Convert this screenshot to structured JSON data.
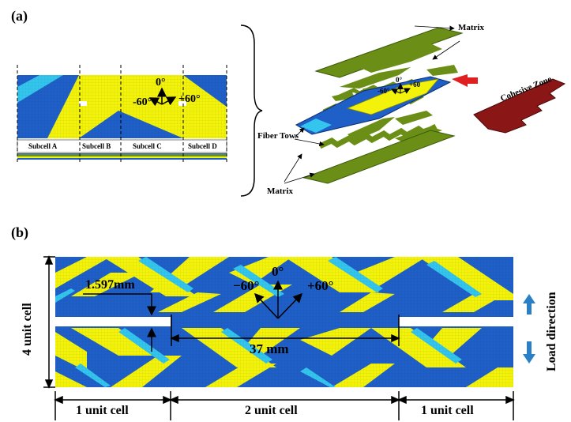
{
  "panel_a": {
    "label": "(a)",
    "subcells": [
      "Subcell  A",
      "Subcell  B",
      "Subcell  C",
      "Subcell  D"
    ],
    "angles": {
      "zero": "0°",
      "minus60": "-60°",
      "plus60": "+60°"
    },
    "exploded": {
      "matrix_top": "Matrix",
      "matrix_bottom": "Matrix",
      "fiber_tows": "Fiber Tows",
      "cohesive_zone": "Cohesive Zone",
      "angle_zero": "0°",
      "angle_plus": "+60",
      "angle_minus": "-60°"
    }
  },
  "panel_b": {
    "label": "(b)",
    "height_label": "4 unit cell",
    "notch_label": "1.597mm",
    "span_label": "37 mm",
    "angles": {
      "zero": "0°",
      "minus60": "−60°",
      "plus60": "+60°"
    },
    "load_direction": "Load direction",
    "bottom_dims": [
      "1 unit cell",
      "2 unit cell",
      "1 unit cell"
    ]
  },
  "colors": {
    "dark_blue": "#1f5fc8",
    "cyan": "#33c5ee",
    "yellow": "#f2f20a",
    "green": "#6b8e16",
    "red_brown": "#8b1616",
    "arrow_red": "#e02020",
    "arrow_blue": "#2a7fc9"
  }
}
